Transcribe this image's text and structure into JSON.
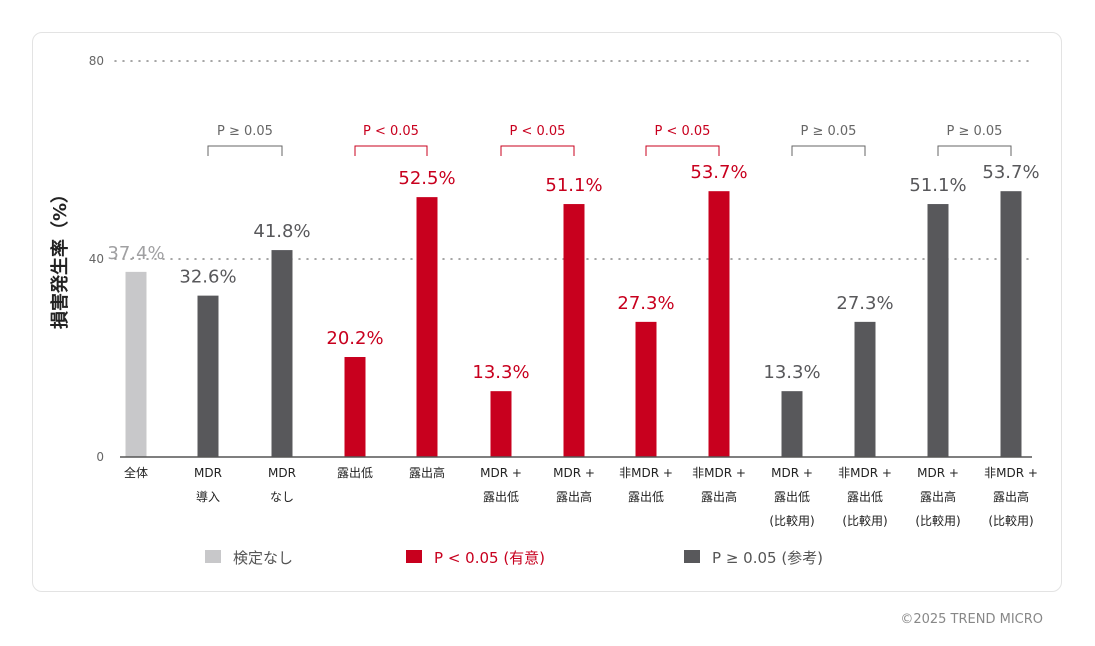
{
  "chart_data": {
    "type": "bar",
    "ylabel": "損害発生率（%）",
    "ylim": [
      0,
      80
    ],
    "yticks": [
      0,
      40,
      80
    ],
    "grid": "dotted horizontal at 40 and 80",
    "categories": [
      [
        "全体"
      ],
      [
        "MDR",
        "導入"
      ],
      [
        "MDR",
        "なし"
      ],
      [
        "露出低"
      ],
      [
        "露出高"
      ],
      [
        "MDR +",
        "露出低"
      ],
      [
        "MDR +",
        "露出高"
      ],
      [
        "非MDR +",
        "露出低"
      ],
      [
        "非MDR +",
        "露出高"
      ],
      [
        "MDR +",
        "露出低",
        "(比較用)"
      ],
      [
        "非MDR +",
        "露出低",
        "(比較用)"
      ],
      [
        "MDR +",
        "露出高",
        "(比較用)"
      ],
      [
        "非MDR +",
        "露出高",
        "(比較用)"
      ]
    ],
    "values": [
      37.4,
      32.6,
      41.8,
      20.2,
      52.5,
      13.3,
      51.1,
      27.3,
      53.7,
      13.3,
      27.3,
      51.1,
      53.7
    ],
    "value_labels": [
      "37.4%",
      "32.6%",
      "41.8%",
      "20.2%",
      "52.5%",
      "13.3%",
      "51.1%",
      "27.3%",
      "53.7%",
      "13.3%",
      "27.3%",
      "51.1%",
      "53.7%"
    ],
    "groups": [
      0,
      2,
      2,
      1,
      1,
      1,
      1,
      1,
      1,
      2,
      2,
      2,
      2
    ],
    "comparisons": [
      {
        "pair": [
          1,
          2
        ],
        "label": "P ≥ 0.05",
        "group": 2
      },
      {
        "pair": [
          3,
          4
        ],
        "label": "P < 0.05",
        "group": 1
      },
      {
        "pair": [
          5,
          6
        ],
        "label": "P < 0.05",
        "group": 1
      },
      {
        "pair": [
          7,
          8
        ],
        "label": "P < 0.05",
        "group": 1
      },
      {
        "pair": [
          9,
          10
        ],
        "label": "P ≥ 0.05",
        "group": 2
      },
      {
        "pair": [
          11,
          12
        ],
        "label": "P ≥ 0.05",
        "group": 2
      }
    ],
    "legend": [
      {
        "label": "検定なし",
        "color": "#c8c8ca",
        "text_color": "#555555"
      },
      {
        "label": "P < 0.05 (有意)",
        "color": "#c8001e",
        "text_color": "#c8001e"
      },
      {
        "label": "P ≥ 0.05 (参考)",
        "color": "#58585b",
        "text_color": "#555555"
      }
    ],
    "legend_placement": "bottom"
  },
  "copyright": "©2025 TREND MICRO"
}
